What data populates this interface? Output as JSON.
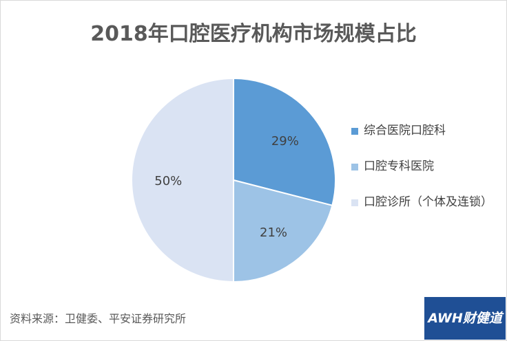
{
  "title": "2018年口腔医疗机构市场规模占比",
  "chart_data": {
    "type": "pie",
    "title": "2018年口腔医疗机构市场规模占比",
    "slices": [
      {
        "label": "综合医院口腔科",
        "value": 29,
        "display": "29%",
        "color": "#5b9bd5"
      },
      {
        "label": "口腔专科医院",
        "value": 21,
        "display": "21%",
        "color": "#9dc3e6"
      },
      {
        "label": "口腔诊所（个体及连锁）",
        "value": 50,
        "display": "50%",
        "color": "#dae3f3"
      }
    ],
    "start_angle": "12 o'clock",
    "direction": "clockwise",
    "legend_position": "right"
  },
  "legend": {
    "item0": "综合医院口腔科",
    "item1": "口腔专科医院",
    "item2": "口腔诊所（个体及连锁）"
  },
  "source": "资料来源：卫健委、平安证券研究所",
  "logo_text": "AWH财健道"
}
